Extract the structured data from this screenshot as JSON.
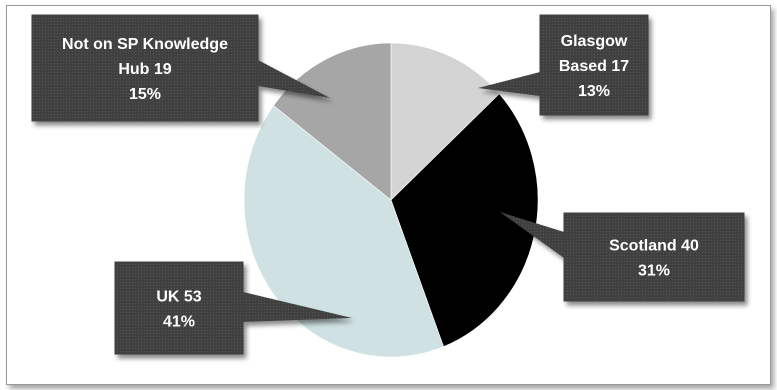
{
  "chart_data": {
    "type": "pie",
    "start_angle_deg": 0,
    "direction": "clockwise",
    "legend": "none",
    "slices": [
      {
        "name": "Glasgow Based",
        "value": 17,
        "percent": 13,
        "color": "#d4d4d4",
        "label_lines": [
          "Glasgow",
          "Based  17",
          "13%"
        ]
      },
      {
        "name": "Scotland",
        "value": 40,
        "percent": 31,
        "color": "#000000",
        "label_lines": [
          "Scotland  40",
          "31%"
        ]
      },
      {
        "name": "UK",
        "value": 53,
        "percent": 41,
        "color": "#cfe1e3",
        "label_lines": [
          "UK 53",
          "41%"
        ]
      },
      {
        "name": "Not on SP Knowledge Hub",
        "value": 19,
        "percent": 15,
        "color": "#a6a6a6",
        "label_lines": [
          "Not on SP Knowledge",
          "Hub 19",
          "15%"
        ]
      }
    ],
    "callout_color": "#404040"
  }
}
